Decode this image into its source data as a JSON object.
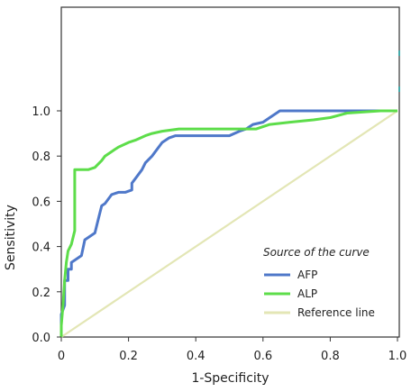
{
  "chart_data": {
    "type": "line",
    "title": "",
    "xlabel": "1-Specificity",
    "ylabel": "Sensitivity",
    "xlim": [
      0,
      1
    ],
    "ylim": [
      0,
      1
    ],
    "x_ticks": [
      "0",
      "0.2",
      "0.4",
      "0.6",
      "0.8",
      "1.0"
    ],
    "y_ticks": [
      "0.0",
      "0.2",
      "0.4",
      "0.6",
      "0.8",
      "1.0"
    ],
    "grid": false,
    "legend": {
      "title": "Source of the curve",
      "placement": "bottom-right"
    },
    "series": [
      {
        "name": "AFP",
        "color": "#4f78c9",
        "x": [
          0,
          0,
          0.01,
          0.01,
          0.02,
          0.02,
          0.03,
          0.03,
          0.04,
          0.06,
          0.07,
          0.08,
          0.1,
          0.11,
          0.12,
          0.13,
          0.15,
          0.17,
          0.19,
          0.21,
          0.21,
          0.22,
          0.23,
          0.24,
          0.25,
          0.27,
          0.28,
          0.3,
          0.32,
          0.34,
          0.36,
          0.4,
          0.45,
          0.5,
          0.53,
          0.55,
          0.57,
          0.6,
          0.62,
          0.65,
          0.7,
          0.75,
          0.8,
          0.82,
          0.9,
          0.95,
          1.0
        ],
        "y": [
          0,
          0.1,
          0.14,
          0.25,
          0.25,
          0.3,
          0.3,
          0.33,
          0.34,
          0.36,
          0.43,
          0.44,
          0.46,
          0.52,
          0.58,
          0.59,
          0.63,
          0.64,
          0.64,
          0.65,
          0.68,
          0.7,
          0.72,
          0.74,
          0.77,
          0.8,
          0.82,
          0.86,
          0.88,
          0.89,
          0.89,
          0.89,
          0.89,
          0.89,
          0.91,
          0.92,
          0.94,
          0.95,
          0.97,
          1.0,
          1.0,
          1.0,
          1.0,
          1.0,
          1.0,
          1.0,
          1.0
        ]
      },
      {
        "name": "ALP",
        "color": "#5ddd4a",
        "x": [
          0,
          0,
          0.005,
          0.01,
          0.015,
          0.02,
          0.03,
          0.04,
          0.04,
          0.06,
          0.08,
          0.1,
          0.12,
          0.13,
          0.15,
          0.17,
          0.2,
          0.22,
          0.25,
          0.27,
          0.3,
          0.35,
          0.4,
          0.5,
          0.58,
          0.62,
          0.68,
          0.75,
          0.8,
          0.85,
          0.95,
          1.0
        ],
        "y": [
          0,
          0.05,
          0.14,
          0.25,
          0.33,
          0.38,
          0.41,
          0.47,
          0.74,
          0.74,
          0.74,
          0.75,
          0.78,
          0.8,
          0.82,
          0.84,
          0.86,
          0.87,
          0.89,
          0.9,
          0.91,
          0.92,
          0.92,
          0.92,
          0.92,
          0.94,
          0.95,
          0.96,
          0.97,
          0.99,
          1.0,
          1.0
        ]
      },
      {
        "name": "Reference line",
        "color": "#e3e6b5",
        "x": [
          0,
          1
        ],
        "y": [
          0,
          1
        ]
      }
    ]
  }
}
